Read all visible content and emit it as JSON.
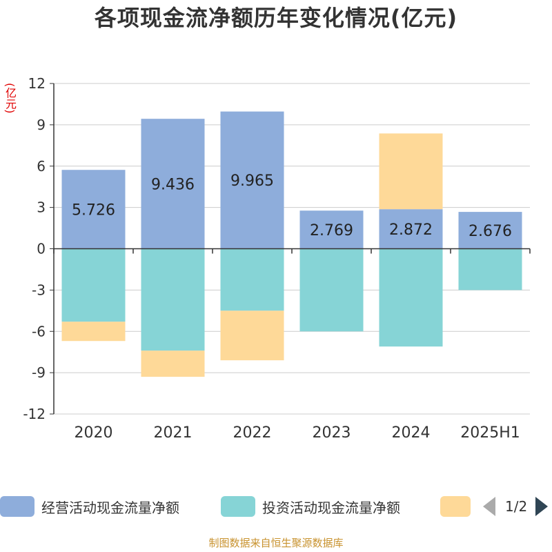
{
  "title": "各项现金流净额历年变化情况(亿元)",
  "unit_label": "(亿元)",
  "source": "制图数据来自恒生聚源数据库",
  "legend": {
    "items": [
      {
        "label": "经营活动现金流量净额",
        "color": "#8eaddb"
      },
      {
        "label": "投资活动现金流量净额",
        "color": "#86d4d6"
      },
      {
        "label": "",
        "color": "#fed998"
      }
    ],
    "page_indicator": "1/2"
  },
  "chart_data": {
    "type": "bar",
    "stacked": true,
    "categories": [
      "2020",
      "2021",
      "2022",
      "2023",
      "2024",
      "2025H1"
    ],
    "ylim": [
      -12,
      12
    ],
    "yticks": [
      "12",
      "9",
      "6",
      "3",
      "0",
      "-3",
      "-6",
      "-9",
      "-12"
    ],
    "grid": true,
    "legend_position": "bottom",
    "series": [
      {
        "name": "经营活动现金流量净额",
        "color": "#8eaddb",
        "values": [
          5.726,
          9.436,
          9.965,
          2.769,
          2.872,
          2.676
        ],
        "labels": [
          "5.726",
          "9.436",
          "9.965",
          "2.769",
          "2.872",
          "2.676"
        ]
      },
      {
        "name": "投资活动现金流量净额",
        "color": "#86d4d6",
        "values": [
          -5.3,
          -7.4,
          -4.5,
          -6.0,
          -7.1,
          -3.0
        ]
      },
      {
        "name": "",
        "color": "#fed998",
        "values": [
          -1.4,
          -1.9,
          -3.6,
          0,
          5.5,
          0
        ]
      }
    ]
  }
}
